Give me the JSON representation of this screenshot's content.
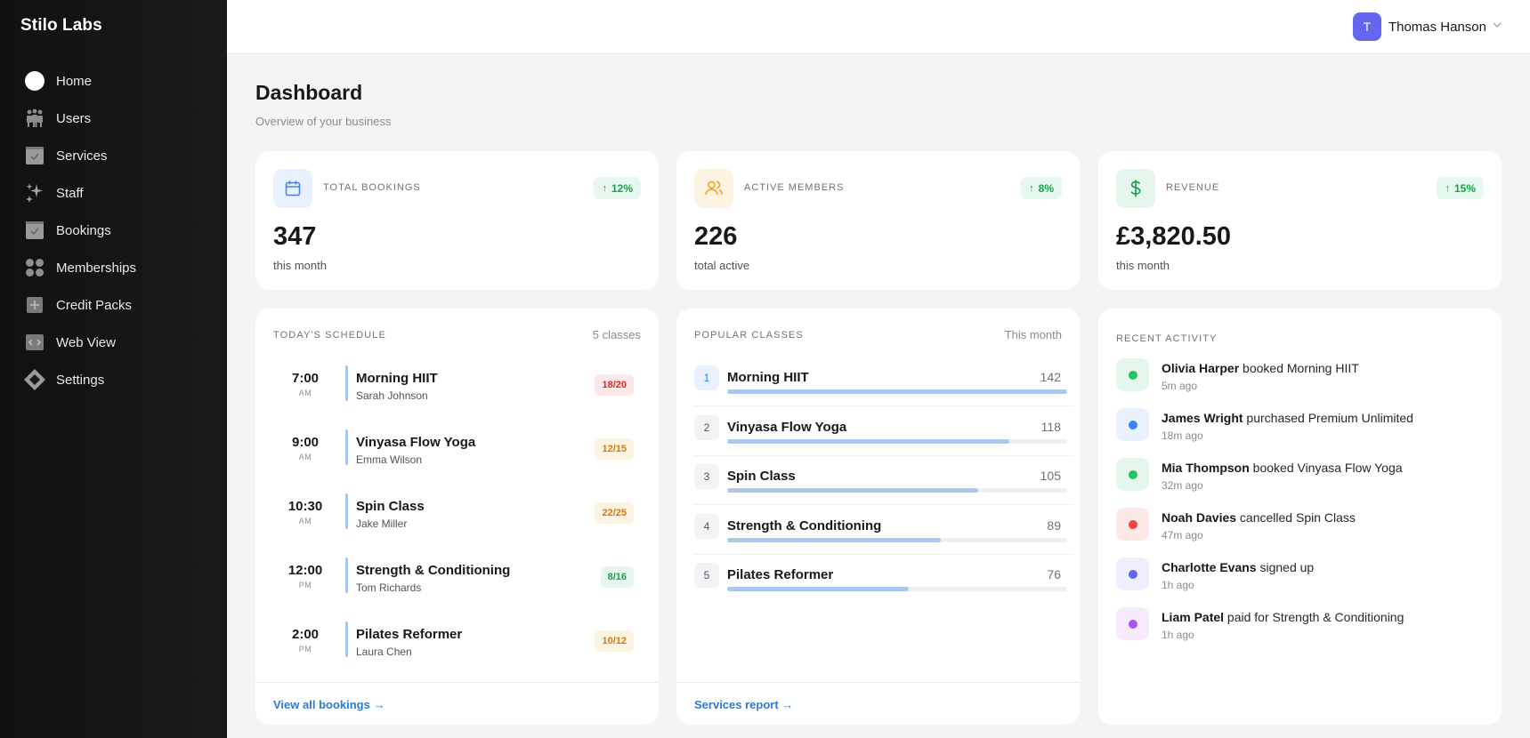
{
  "app": {
    "brand": "Stilo Labs"
  },
  "sidebar": {
    "items": [
      {
        "label": "Home",
        "icon": "home-icon"
      },
      {
        "label": "Users",
        "icon": "users-icon"
      },
      {
        "label": "Services",
        "icon": "services-icon"
      },
      {
        "label": "Staff",
        "icon": "staff-icon"
      },
      {
        "label": "Bookings",
        "icon": "bookings-icon"
      },
      {
        "label": "Memberships",
        "icon": "memberships-icon"
      },
      {
        "label": "Credit Packs",
        "icon": "credit-packs-icon"
      },
      {
        "label": "Web View",
        "icon": "web-view-icon"
      },
      {
        "label": "Settings",
        "icon": "settings-icon"
      }
    ]
  },
  "user": {
    "initial": "T",
    "name": "Thomas Hanson",
    "avatar_color": "#6366f1"
  },
  "header": {
    "title": "Dashboard",
    "subtitle": "Overview of your business"
  },
  "stats": [
    {
      "label": "TOTAL BOOKINGS",
      "change": "12%",
      "value": "347",
      "sub": "this month",
      "icon": "calendar-icon",
      "icon_color": "#3b82f6",
      "icon_bg": "#e8f1fd"
    },
    {
      "label": "ACTIVE MEMBERS",
      "change": "8%",
      "value": "226",
      "sub": "total active",
      "icon": "users-icon",
      "icon_color": "#f59e0b",
      "icon_bg": "#fdf3e2"
    },
    {
      "label": "REVENUE",
      "change": "15%",
      "value": "£3,820.50",
      "sub": "this month",
      "icon": "dollar-icon",
      "icon_color": "#16a34a",
      "icon_bg": "#e5f7ec"
    }
  ],
  "schedule": {
    "title": "TODAY'S SCHEDULE",
    "count": "5 classes",
    "items": [
      {
        "time": "7:00",
        "ampm": "AM",
        "name": "Morning HIIT",
        "instructor": "Sarah Johnson",
        "capacity": "18/20",
        "cap_color": "#dc2626",
        "cap_bg": "#fde8e8"
      },
      {
        "time": "9:00",
        "ampm": "AM",
        "name": "Vinyasa Flow Yoga",
        "instructor": "Emma Wilson",
        "capacity": "12/15",
        "cap_color": "#d97706",
        "cap_bg": "#fdf3e2"
      },
      {
        "time": "10:30",
        "ampm": "AM",
        "name": "Spin Class",
        "instructor": "Jake Miller",
        "capacity": "22/25",
        "cap_color": "#d97706",
        "cap_bg": "#fdf3e2"
      },
      {
        "time": "12:00",
        "ampm": "PM",
        "name": "Strength & Conditioning",
        "instructor": "Tom Richards",
        "capacity": "8/16",
        "cap_color": "#16a34a",
        "cap_bg": "#e5f7ec"
      },
      {
        "time": "2:00",
        "ampm": "PM",
        "name": "Pilates Reformer",
        "instructor": "Laura Chen",
        "capacity": "10/12",
        "cap_color": "#d97706",
        "cap_bg": "#fdf3e2"
      }
    ],
    "link": "View all bookings →"
  },
  "popular": {
    "title": "POPULAR CLASSES",
    "period": "This month",
    "items": [
      {
        "rank": "1",
        "name": "Morning HIIT",
        "count": 142,
        "fraction": 1.0,
        "highlight": true
      },
      {
        "rank": "2",
        "name": "Vinyasa Flow Yoga",
        "count": 118,
        "fraction": 0.831
      },
      {
        "rank": "3",
        "name": "Spin Class",
        "count": 105,
        "fraction": 0.739
      },
      {
        "rank": "4",
        "name": "Strength & Conditioning",
        "count": 89,
        "fraction": 0.627
      },
      {
        "rank": "5",
        "name": "Pilates Reformer",
        "count": 76,
        "fraction": 0.535
      }
    ],
    "link": "Services report →"
  },
  "activity": {
    "title": "RECENT ACTIVITY",
    "items": [
      {
        "who": "Olivia Harper",
        "what": " booked Morning HIIT",
        "time": "5m ago",
        "dot": "#22c55e",
        "bg": "#e5f7ec"
      },
      {
        "who": "James Wright",
        "what": " purchased Premium Unlimited",
        "time": "18m ago",
        "dot": "#3b82f6",
        "bg": "#e8f1fd"
      },
      {
        "who": "Mia Thompson",
        "what": " booked Vinyasa Flow Yoga",
        "time": "32m ago",
        "dot": "#22c55e",
        "bg": "#e5f7ec"
      },
      {
        "who": "Noah Davies",
        "what": " cancelled Spin Class",
        "time": "47m ago",
        "dot": "#ef4444",
        "bg": "#fde8e8"
      },
      {
        "who": "Charlotte Evans",
        "what": " signed up",
        "time": "1h ago",
        "dot": "#6366f1",
        "bg": "#eeeefd"
      },
      {
        "who": "Liam Patel",
        "what": " paid for Strength & Conditioning",
        "time": "1h ago",
        "dot": "#a855f7",
        "bg": "#f5ebfd"
      }
    ]
  }
}
